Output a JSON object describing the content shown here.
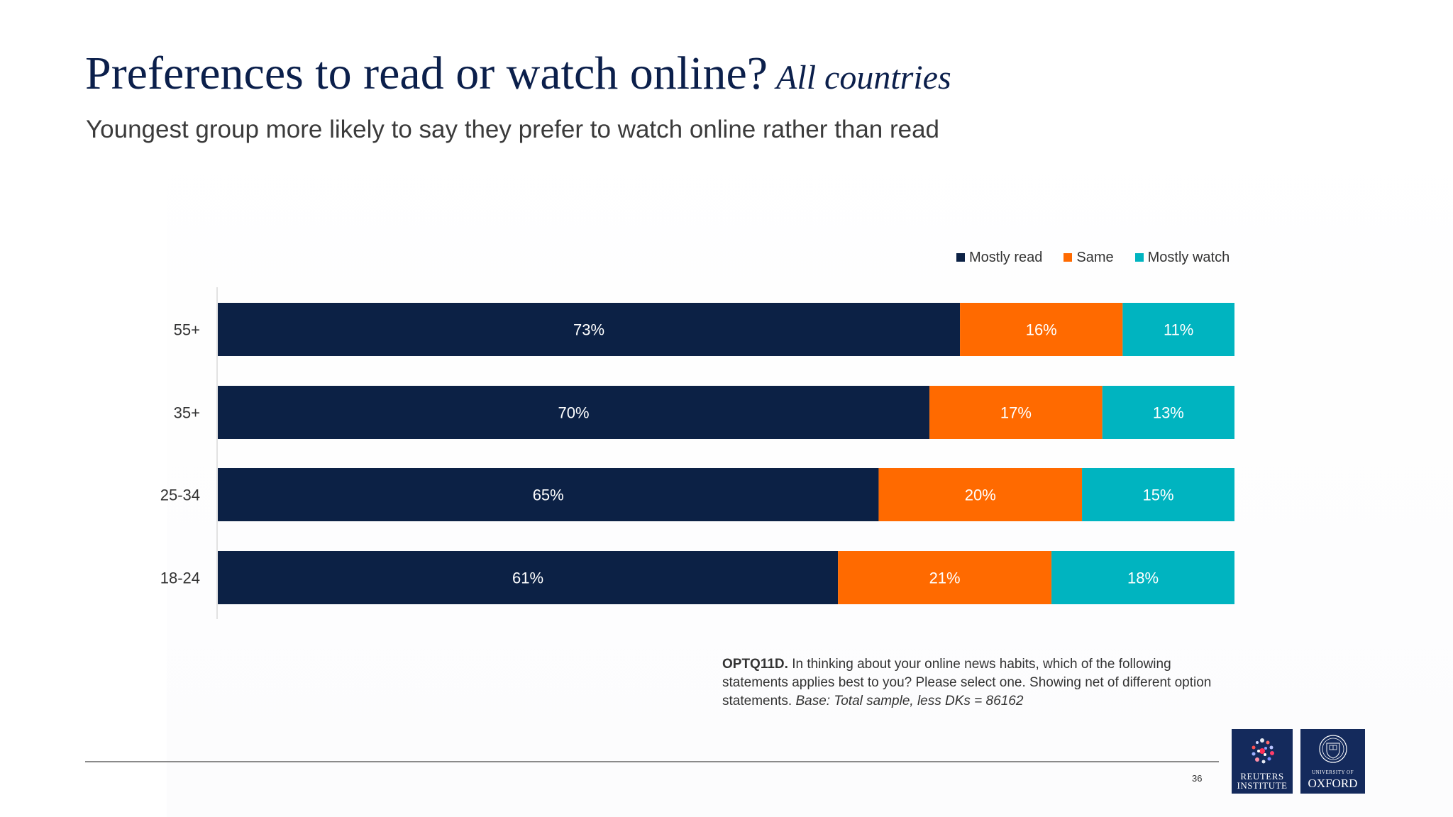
{
  "title": "Preferences to read or watch online?",
  "title_italic": "All countries",
  "subtitle": "Youngest group more likely to say they prefer to watch online rather than read",
  "note": {
    "code": "OPTQ11D.",
    "text": "In thinking about your online news habits, which of the following statements applies best to you? Please select one. Showing net of different option statements.",
    "base": "Base: Total sample, less DKs = 86162"
  },
  "page_number": "36",
  "logos": {
    "reuters_text": "REUTERS INSTITUTE",
    "oxford_small": "UNIVERSITY OF",
    "oxford_big": "OXFORD"
  },
  "colors": {
    "mostly_read": "#0c2145",
    "same": "#ff6a00",
    "mostly_watch": "#00b4c0"
  },
  "chart_data": {
    "type": "bar",
    "orientation": "horizontal",
    "stacked": true,
    "percent_stacked": true,
    "categories": [
      "55+",
      "35+",
      "25-34",
      "18-24"
    ],
    "series": [
      {
        "name": "Mostly read",
        "values": [
          73,
          70,
          65,
          61
        ],
        "labels": [
          "73%",
          "70%",
          "65%",
          "61%"
        ]
      },
      {
        "name": "Same",
        "values": [
          16,
          17,
          20,
          21
        ],
        "labels": [
          "16%",
          "17%",
          "20%",
          "21%"
        ]
      },
      {
        "name": "Mostly watch",
        "values": [
          11,
          13,
          15,
          18
        ],
        "labels": [
          "11%",
          "13%",
          "15%",
          "18%"
        ]
      }
    ],
    "xlim": [
      0,
      100
    ],
    "legend_position": "top-right",
    "grid": false
  }
}
